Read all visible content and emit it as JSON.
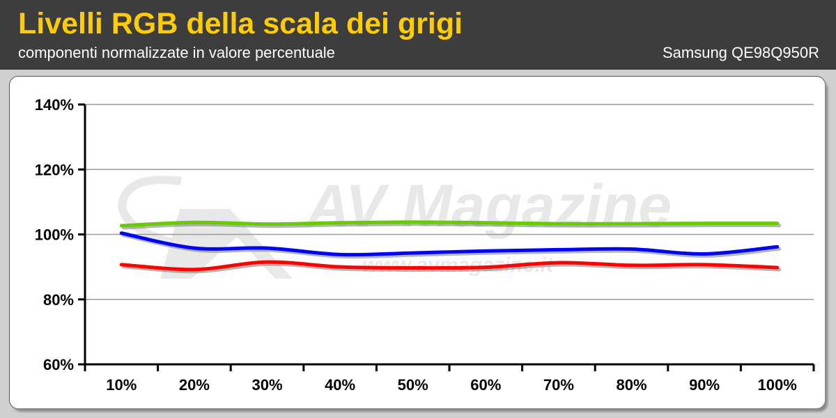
{
  "header": {
    "title": "Livelli RGB della scala dei grigi",
    "subtitle": "componenti normalizzate in valore percentuale",
    "model": "Samsung QE98Q950R"
  },
  "watermark": {
    "logo_text": "AV Magazine",
    "url": "www.avmagazine.it"
  },
  "colors": {
    "title": "#ffcc00",
    "header_bg": "#3d3d3d",
    "red": "#ff0000",
    "green": "#66cc00",
    "blue": "#0000ff"
  },
  "chart_data": {
    "type": "line",
    "categories": [
      "10%",
      "20%",
      "30%",
      "40%",
      "50%",
      "60%",
      "70%",
      "80%",
      "90%",
      "100%"
    ],
    "ylim": [
      60,
      140
    ],
    "yticks": [
      60,
      80,
      100,
      120,
      140
    ],
    "ytick_labels": [
      "60%",
      "80%",
      "100%",
      "120%",
      "140%"
    ],
    "grid": true,
    "legend": "none",
    "series": [
      {
        "color": "#66cc00",
        "values": [
          102.7,
          103.7,
          103.2,
          103.6,
          103.8,
          103.6,
          103.3,
          103.3,
          103.4,
          103.4
        ]
      },
      {
        "color": "#0000ff",
        "values": [
          100.4,
          95.8,
          95.8,
          93.8,
          94.3,
          94.9,
          95.3,
          95.5,
          94.0,
          96.2
        ]
      },
      {
        "color": "#ff0000",
        "values": [
          90.7,
          89.2,
          91.5,
          90.0,
          89.7,
          89.9,
          91.3,
          90.5,
          90.7,
          89.8
        ]
      }
    ]
  }
}
